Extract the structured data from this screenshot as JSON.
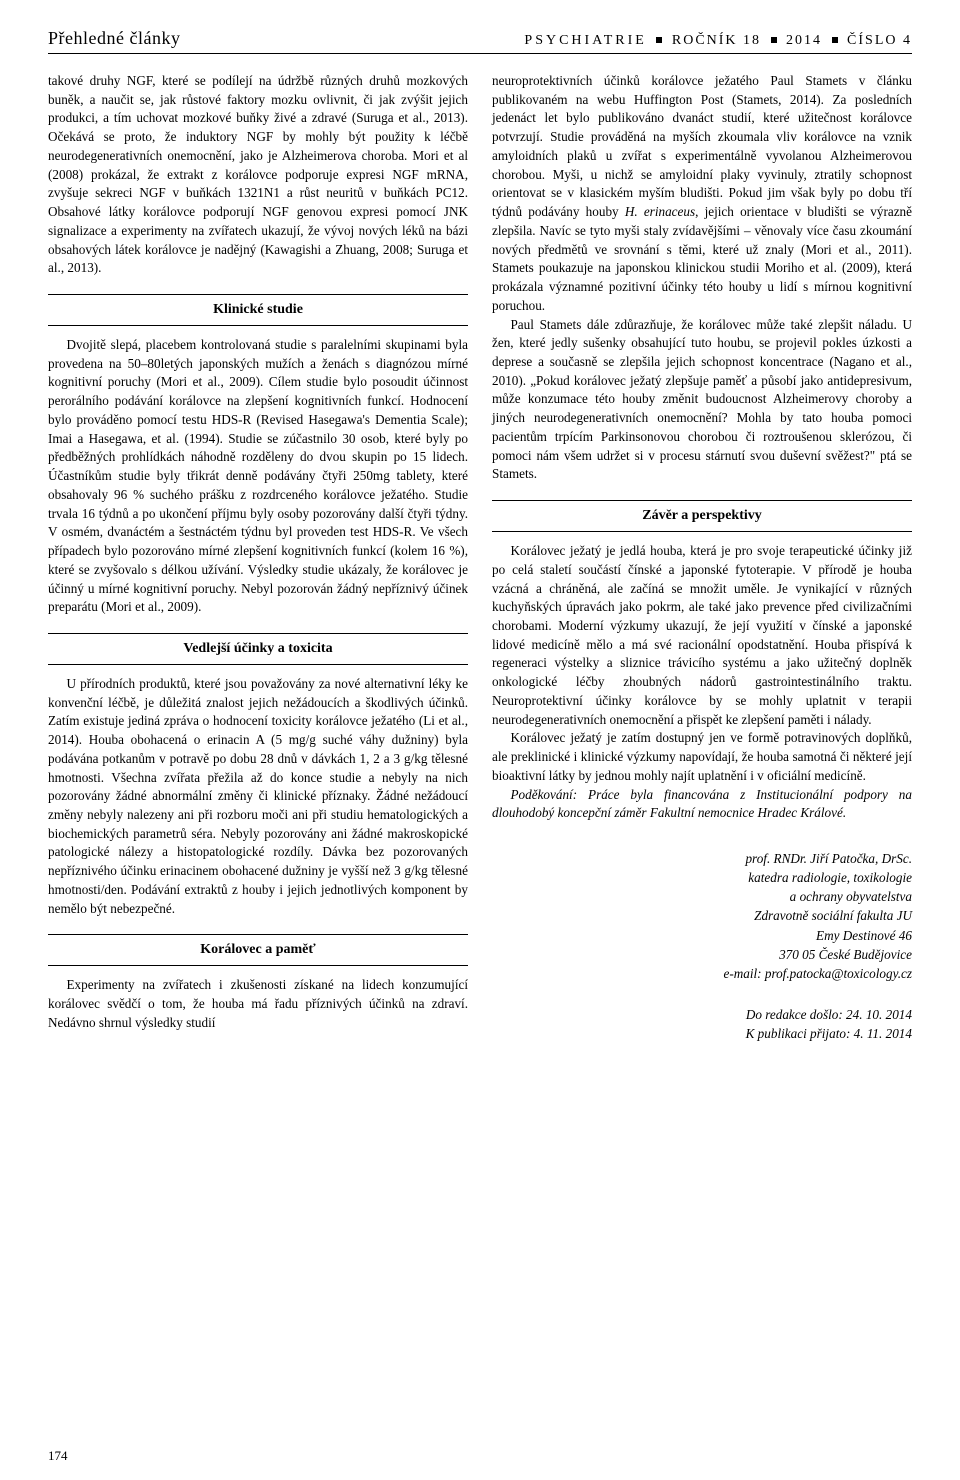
{
  "header": {
    "left": "Přehledné články",
    "right_journal": "PSYCHIATRIE",
    "right_vol": "ROČNÍK 18",
    "right_year": "2014",
    "right_issue": "ČÍSLO 4"
  },
  "page_number": "174",
  "col1": {
    "intro": "takové druhy NGF, které se podílejí na údržbě různých druhů mozkových buněk, a naučit se, jak růstové faktory mozku ovlivnit, či jak zvýšit jejich produkci, a tím uchovat mozkové buňky živé a zdravé (Suruga et al., 2013). Očekává se proto, že induktory NGF by mohly být použity k léčbě neurodegenerativních onemocnění, jako je Alzheimerova choroba. Mori et al (2008) prokázal, že extrakt z korálovce podporuje expresi NGF mRNA, zvyšuje sekreci NGF v buňkách 1321N1 a růst neuritů v buňkách PC12. Obsahové látky korálovce podporují NGF genovou expresi pomocí JNK signalizace a experimenty na zvířatech ukazují, že vývoj nových léků na bázi obsahových látek korálovce je nadějný (Kawagishi a Zhuang, 2008; Suruga et al., 2013).",
    "sec1_title": "Klinické studie",
    "sec1_p1": "Dvojitě slepá, placebem kontrolovaná studie s paralelními skupinami byla provedena na 50–80letých japonských mužích a ženách s diagnózou mírné kognitivní poruchy (Mori et al., 2009). Cílem studie bylo posoudit účinnost perorálního podávání korálovce na zlepšení kognitivních funkcí. Hodnocení bylo prováděno pomocí testu HDS-R (Revised Hasegawa's Dementia Scale); Imai a Hasegawa, et al. (1994). Studie se zúčastnilo 30 osob, které byly po předběžných prohlídkách náhodně rozděleny do dvou skupin po 15 lidech. Účastníkům studie byly třikrát denně podávány čtyři 250mg tablety, které obsahovaly 96 % suchého prášku z rozdrceného korálovce ježatého. Studie trvala 16 týdnů a po ukončení příjmu byly osoby pozorovány další čtyři týdny. V osmém, dvanáctém a šestnáctém týdnu byl proveden test HDS-R. Ve všech případech bylo pozorováno mírné zlepšení kognitivních funkcí (kolem 16 %), které se zvyšovalo s délkou užívání. Výsledky studie ukázaly, že korálovec je účinný u mírné kognitivní poruchy. Nebyl pozorován žádný nepříznivý účinek preparátu (Mori et al., 2009).",
    "sec2_title": "Vedlejší účinky a toxicita",
    "sec2_p1": "U přírodních produktů, které jsou považovány za nové alternativní léky ke konvenční léčbě, je důležitá znalost jejich nežádoucích a škodlivých účinků. Zatím existuje jediná zpráva o hodnocení toxicity korálovce ježatého (Li et al., 2014). Houba obohacená o erinacin A (5 mg/g suché váhy dužniny) byla podávána potkanům v potravě po dobu 28 dnů v dávkách 1, 2 a 3 g/kg tělesné hmotnosti. Všechna zvířata přežila až do konce studie a nebyly na nich pozorovány žádné abnormální změny či klinické příznaky. Žádné nežádoucí změny nebyly nalezeny ani při rozboru moči ani při studiu hematologických a biochemických parametrů séra. Nebyly pozorovány ani žádné makroskopické patologické nálezy a histopatologické rozdíly. Dávka bez pozorovaných nepříznivého účinku erinacinem obohacené dužniny je vyšší než 3 g/kg tělesné hmotnosti/den. Podávání extraktů z houby i jejich jednotlivých komponent by nemělo být nebezpečné.",
    "sec3_title": "Korálovec a paměť",
    "sec3_p1": "Experimenty na zvířatech i zkušenosti získané na lidech konzumující korálovec svědčí o tom, že houba má řadu příznivých účinků na zdraví. Nedávno shrnul výsledky studií"
  },
  "col2": {
    "p1a": "neuroprotektivních účinků korálovce ježatého Paul Stamets v článku publikovaném na webu Huffington Post (Stamets, 2014). Za posledních jedenáct let bylo publikováno dvanáct studií, které užitečnost korálovce potvrzují. Studie prováděná na myších zkoumala vliv korálovce na vznik amyloidních plaků u zvířat s experimentálně vyvolanou Alzheimerovou chorobou. Myši, u nichž se amyloidní plaky vyvinuly, ztratily schopnost orientovat se v klasickém myším bludišti. Pokud jim však byly po dobu tří týdnů podávány houby ",
    "p1_italic": "H. erinaceus",
    "p1b": ", jejich orientace v bludišti se výrazně zlepšila. Navíc se tyto myši staly zvídavějšími – věnovaly více času zkoumání nových předmětů ve srovnání s těmi, které už znaly (Mori et al., 2011). Stamets poukazuje na japonskou klinickou studii Moriho et al. (2009), která prokázala významné pozitivní účinky této houby u lidí s mírnou kognitivní poruchou.",
    "p2": "Paul Stamets dále zdůrazňuje, že korálovec může také zlepšit náladu. U žen, které jedly sušenky obsahující tuto houbu, se projevil pokles úzkosti a deprese a současně se zlepšila jejich schopnost koncentrace (Nagano et al., 2010). „Pokud korálovec ježatý zlepšuje paměť a působí jako antidepresivum, může konzumace této houby změnit budoucnost Alzheimerovy choroby a jiných neurodegenerativních onemocnění? Mohla by tato houba pomoci pacientům trpícím Parkinsonovou chorobou či roztroušenou sklerózou, či pomoci nám všem udržet si v procesu stárnutí svou duševní svěžest?\" ptá se Stamets.",
    "sec4_title": "Závěr a perspektivy",
    "sec4_p1": "Korálovec ježatý je jedlá houba, která je pro svoje terapeutické účinky již po celá staletí součástí čínské a japonské fytoterapie. V přírodě je houba vzácná a chráněná, ale začíná se množit uměle. Je vynikající v různých kuchyňských úpravách jako pokrm, ale také jako prevence před civilizačními chorobami. Moderní výzkumy ukazují, že její využití v čínské a japonské lidové medicíně mělo a má své racionální opodstatnění. Houba přispívá k regeneraci výstelky a sliznice trávicího systému a jako užitečný doplněk onkologické léčby zhoubných nádorů gastrointestinálního traktu. Neuroprotektivní účinky korálovce by se mohly uplatnit v terapii neurodegenerativních onemocnění a přispět ke zlepšení paměti i nálady.",
    "sec4_p2": "Korálovec ježatý je zatím dostupný jen ve formě potravinových doplňků, ale preklinické i klinické výzkumy napovídají, že houba samotná či některé její bioaktivní látky by jednou mohly najít uplatnění i v oficiální medicíně.",
    "ack": "Poděkování: Práce byla financována z Institucionální podpory na dlouhodobý koncepční záměr Fakultní nemocnice Hradec Králové.",
    "author_name": "prof. RNDr. Jiří Patočka, DrSc.",
    "author_dept1": "katedra radiologie, toxikologie",
    "author_dept2": "a ochrany obyvatelstva",
    "author_fac": "Zdravotně sociální fakulta JU",
    "author_street": "Emy Destinové 46",
    "author_city": "370 05 České Budějovice",
    "author_email": "e-mail: prof.patocka@toxicology.cz",
    "date_received": "Do redakce došlo: 24. 10. 2014",
    "date_accepted": "K publikaci přijato: 4. 11. 2014"
  }
}
